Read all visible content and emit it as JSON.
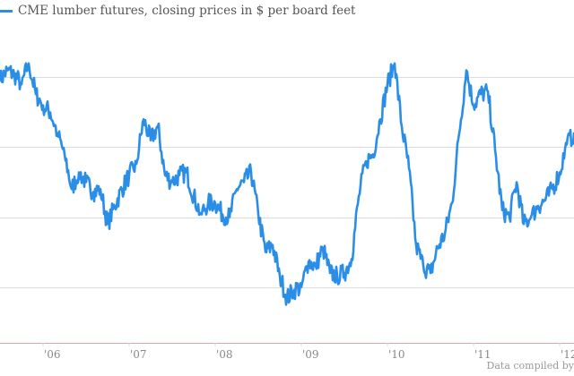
{
  "chart_data": {
    "type": "line",
    "title": "",
    "legend": "top-left",
    "grid": true,
    "series": [
      {
        "name": "CME lumber futures, closing prices in $ per board feet",
        "color": "#2a8ee6",
        "x": [
          "2005-07",
          "2005-08",
          "2005-09",
          "2005-10",
          "2005-11",
          "2005-12",
          "2006-01",
          "2006-02",
          "2006-03",
          "2006-04",
          "2006-05",
          "2006-06",
          "2006-07",
          "2006-08",
          "2006-09",
          "2006-10",
          "2006-11",
          "2006-12",
          "2007-01",
          "2007-02",
          "2007-03",
          "2007-04",
          "2007-05",
          "2007-06",
          "2007-07",
          "2007-08",
          "2007-09",
          "2007-10",
          "2007-11",
          "2007-12",
          "2008-01",
          "2008-02",
          "2008-03",
          "2008-04",
          "2008-05",
          "2008-06",
          "2008-07",
          "2008-08",
          "2008-09",
          "2008-10",
          "2008-11",
          "2008-12",
          "2009-01",
          "2009-02",
          "2009-03",
          "2009-04",
          "2009-05",
          "2009-06",
          "2009-07",
          "2009-08",
          "2009-09",
          "2009-10",
          "2009-11",
          "2009-12",
          "2010-01",
          "2010-02",
          "2010-03",
          "2010-04",
          "2010-05",
          "2010-06",
          "2010-07",
          "2010-08",
          "2010-09",
          "2010-10",
          "2010-11",
          "2010-12",
          "2011-01",
          "2011-02",
          "2011-03",
          "2011-04",
          "2011-05",
          "2011-06",
          "2011-07",
          "2011-08",
          "2011-09",
          "2011-10",
          "2011-11",
          "2011-12",
          "2012-01",
          "2012-02",
          "2012-03"
        ],
        "values": [
          328,
          335,
          332,
          325,
          340,
          318,
          310,
          305,
          290,
          275,
          250,
          262,
          255,
          248,
          250,
          225,
          238,
          250,
          260,
          268,
          300,
          285,
          295,
          260,
          255,
          260,
          262,
          245,
          232,
          240,
          240,
          232,
          230,
          250,
          255,
          262,
          232,
          205,
          210,
          188,
          172,
          178,
          180,
          198,
          195,
          208,
          190,
          188,
          190,
          200,
          245,
          270,
          275,
          300,
          325,
          340,
          295,
          265,
          210,
          195,
          190,
          208,
          218,
          240,
          290,
          335,
          310,
          318,
          320,
          278,
          235,
          230,
          255,
          225,
          230,
          238,
          242,
          250,
          262,
          282,
          290
        ]
      }
    ],
    "x_tick_labels": [
      "'06",
      "'07",
      "'08",
      "'09",
      "'10",
      "'11",
      "'12"
    ],
    "x_tick_dates": [
      "2006-01",
      "2007-01",
      "2008-01",
      "2009-01",
      "2010-01",
      "2011-01",
      "2012-01"
    ],
    "xlim": [
      "2005-07",
      "2012-03"
    ],
    "ylim": [
      140,
      370
    ],
    "y_gridlines": [
      180,
      230,
      280,
      330
    ],
    "colors": {
      "line": "#2a8ee6",
      "grid": "#dcdcdc",
      "baseline": "#e2a3ab",
      "tick_label": "#888888"
    }
  },
  "credit": "Data compiled by"
}
